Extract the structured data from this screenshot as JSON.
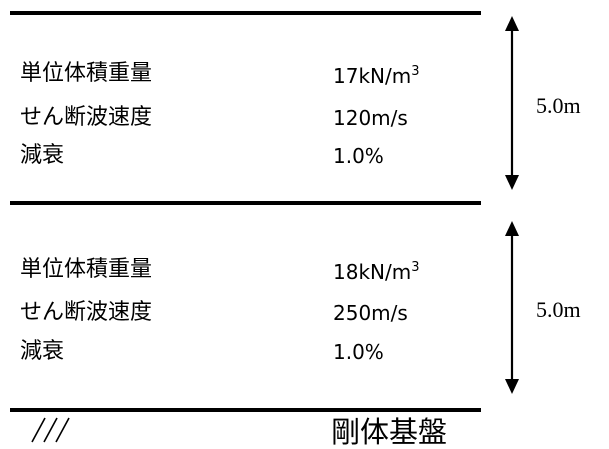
{
  "layers": [
    {
      "unit_weight_label": "単位体積重量",
      "unit_weight_value": "17kN/m",
      "unit_weight_exponent": "3",
      "shear_wave_label": "せん断波速度",
      "shear_wave_value": "120m/s",
      "damping_label": "減衰",
      "damping_value": "1.0%",
      "thickness": "5.0m"
    },
    {
      "unit_weight_label": "単位体積重量",
      "unit_weight_value": "18kN/m",
      "unit_weight_exponent": "3",
      "shear_wave_label": "せん断波速度",
      "shear_wave_value": "250m/s",
      "damping_label": "減衰",
      "damping_value": "1.0%",
      "thickness": "5.0m"
    }
  ],
  "bedrock": {
    "label": "剛体基盤",
    "hatch_icon": "ground-hatch-icon"
  }
}
